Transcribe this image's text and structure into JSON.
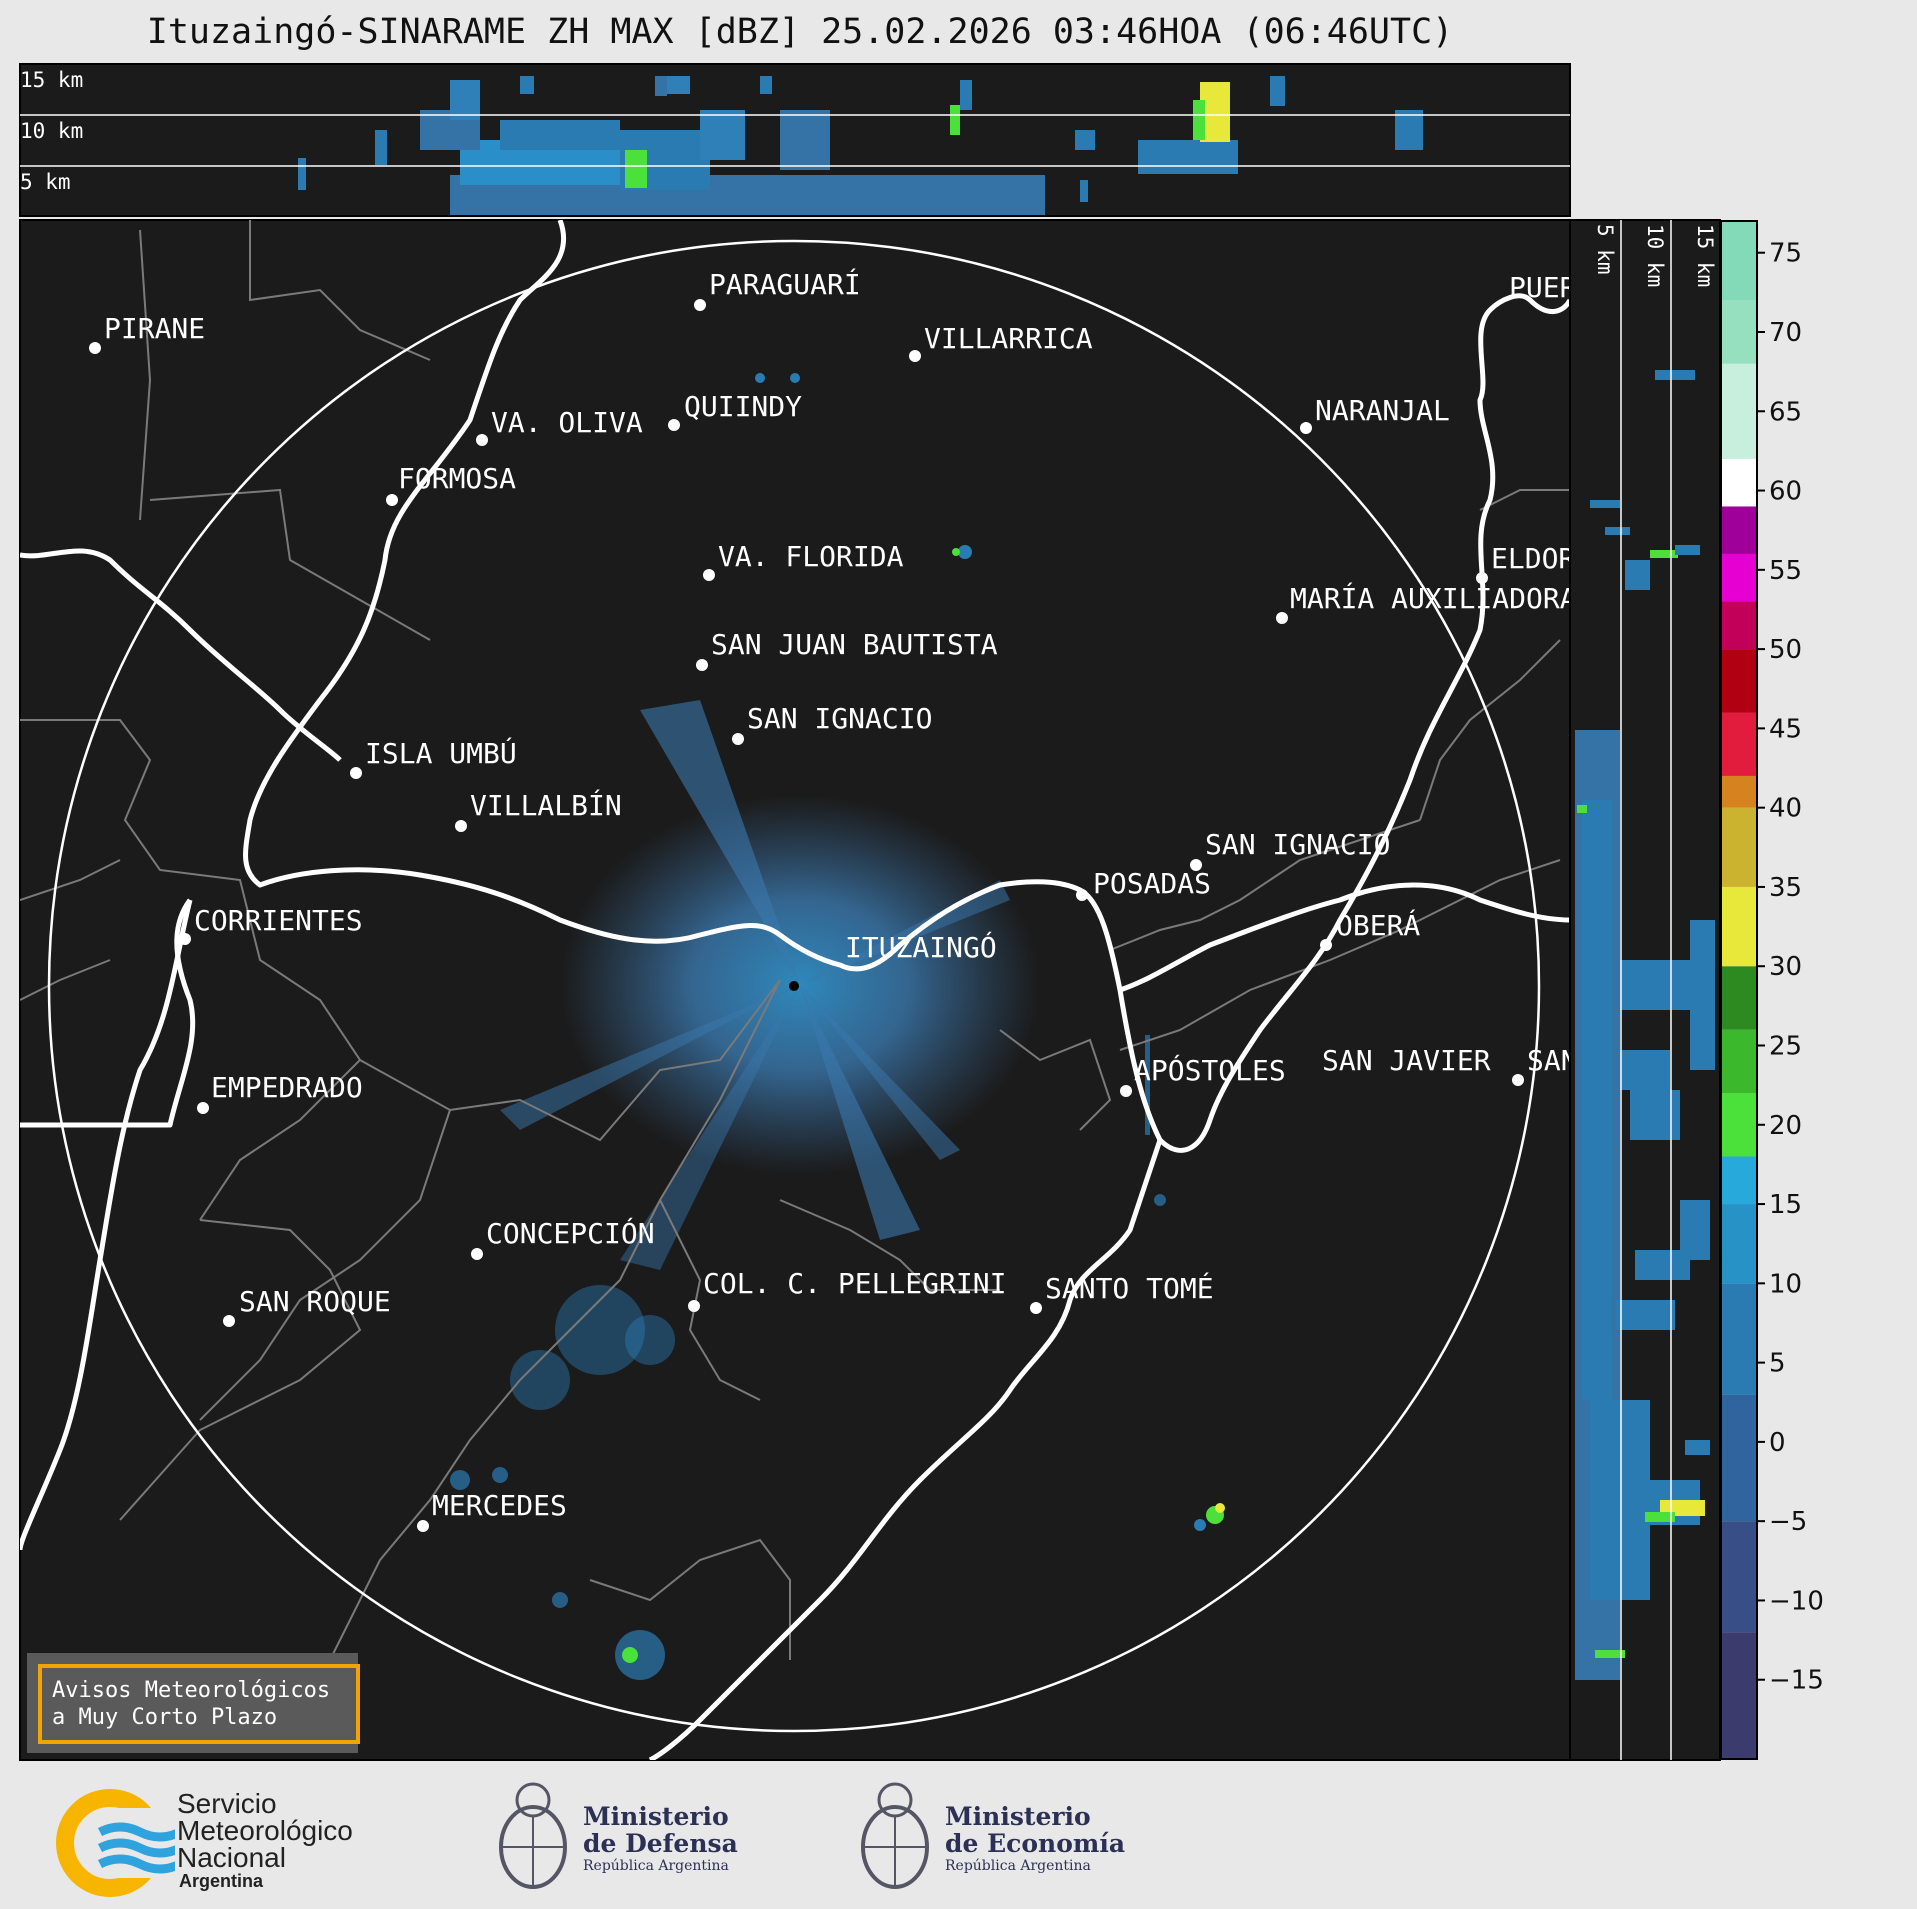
{
  "title": "Ituzaingó-SINARAME ZH MAX [dBZ] 25.02.2026 03:46HOA (06:46UTC)",
  "top_panel": {
    "height_labels": [
      "15 km",
      "10 km",
      "5 km"
    ]
  },
  "side_panel": {
    "height_labels": [
      "5 km",
      "10 km",
      "15 km"
    ]
  },
  "radar_center": "ITUZAINGÓ",
  "cities": [
    "PARAGUARÍ",
    "VILLARRICA",
    "PIRANE",
    "VA. OLIVA",
    "QUIINDY",
    "NARANJAL",
    "FORMOSA",
    "VA. FLORIDA",
    "ELDORADO",
    "MARÍA AUXILIADORA",
    "SAN JUAN BAUTISTA",
    "SAN IGNACIO",
    "ISLA UMBÚ",
    "VILLALBÍN",
    "SAN IGNACIO",
    "POSADAS",
    "CORRIENTES",
    "OBERÁ",
    "EMPEDRADO",
    "APÓSTOLES",
    "SAN JAVIER",
    "SAN",
    "CONCEPCIÓN",
    "COL. C. PELLEGRINI",
    "SANTO TOMÉ",
    "SAN ROQUE",
    "MERCEDES",
    "PUERTO"
  ],
  "legend_box": {
    "line1": "Avisos Meteorológicos",
    "line2": "a Muy Corto Plazo",
    "border_color": "#f0a500"
  },
  "colorbar": {
    "ticks": [
      "75",
      "70",
      "65",
      "60",
      "55",
      "50",
      "45",
      "40",
      "35",
      "30",
      "25",
      "20",
      "15",
      "10",
      "5",
      "0",
      "−5",
      "−10",
      "−15"
    ],
    "range_dbz": [
      -20,
      77
    ],
    "stops": [
      {
        "from": -20,
        "color": "#3b3b6e"
      },
      {
        "from": -12,
        "color": "#374f86"
      },
      {
        "from": -5,
        "color": "#30649c"
      },
      {
        "from": 3,
        "color": "#2b7bb3"
      },
      {
        "from": 10,
        "color": "#2692c6"
      },
      {
        "from": 15,
        "color": "#27a9dc"
      },
      {
        "from": 18,
        "color": "#4be13a"
      },
      {
        "from": 22,
        "color": "#3cb82c"
      },
      {
        "from": 26,
        "color": "#2c8a20"
      },
      {
        "from": 30,
        "color": "#e8e83a"
      },
      {
        "from": 35,
        "color": "#cbb22f"
      },
      {
        "from": 40,
        "color": "#d6821f"
      },
      {
        "from": 42,
        "color": "#e21c3c"
      },
      {
        "from": 46,
        "color": "#b00012"
      },
      {
        "from": 50,
        "color": "#c2005a"
      },
      {
        "from": 53,
        "color": "#e600d2"
      },
      {
        "from": 56,
        "color": "#a0009a"
      },
      {
        "from": 59,
        "color": "#ffffff"
      },
      {
        "from": 62,
        "color": "#c8eedd"
      },
      {
        "from": 68,
        "color": "#96e0c0"
      },
      {
        "from": 72,
        "color": "#82dab8"
      }
    ]
  },
  "footer": {
    "smn": {
      "line1": "Servicio",
      "line2": "Meteorológico",
      "line3": "Nacional",
      "line4": "Argentina"
    },
    "defensa": {
      "line1": "Ministerio",
      "line2": "de Defensa",
      "line3": "República Argentina"
    },
    "economia": {
      "line1": "Ministerio",
      "line2": "de Economía",
      "line3": "República Argentina"
    }
  }
}
